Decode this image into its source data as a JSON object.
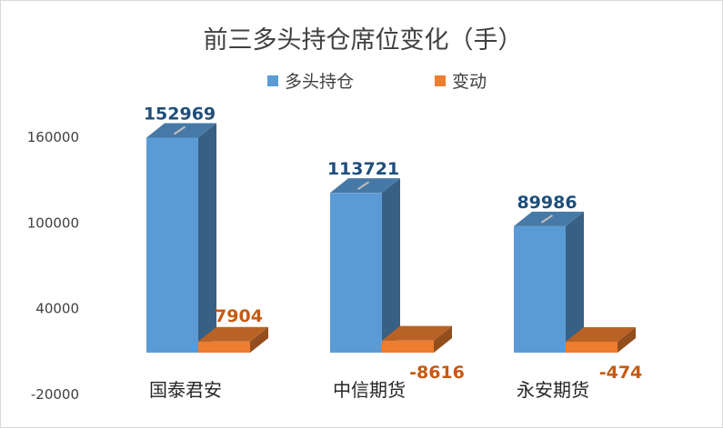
{
  "chart_data": {
    "type": "bar",
    "title": "前三多头持仓席位变化（手）",
    "categories": [
      "国泰君安",
      "中信期货",
      "永安期货"
    ],
    "series": [
      {
        "name": "多头持仓",
        "values": [
          152969,
          113721,
          89986
        ],
        "color": "#5b9bd5"
      },
      {
        "name": "变动",
        "values": [
          7904,
          -8616,
          -474
        ],
        "color": "#ed7d31"
      }
    ],
    "yticks": [
      -20000,
      40000,
      100000,
      160000
    ],
    "ylim": [
      -20000,
      160000
    ],
    "legend_position": "top",
    "grid": false,
    "three_d": true
  }
}
